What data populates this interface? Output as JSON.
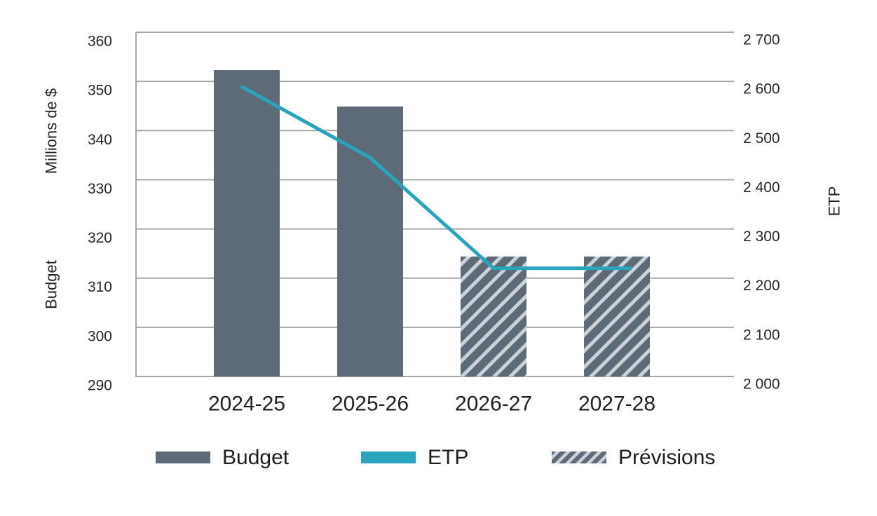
{
  "chart_data": {
    "type": "combo-bar-line",
    "title": "",
    "categories": [
      "2024-25",
      "2025-26",
      "2026-27",
      "2027-28"
    ],
    "series": [
      {
        "name": "Budget",
        "type": "bar",
        "pattern": "solid",
        "axis": "left",
        "values": [
          352.3,
          344.9,
          null,
          null
        ]
      },
      {
        "name": "ETP",
        "type": "line",
        "pattern": "solid",
        "axis": "right",
        "values": [
          2590,
          2445,
          2220,
          2220
        ]
      },
      {
        "name": "Prévisions",
        "type": "bar",
        "pattern": "hatched",
        "axis": "left",
        "values": [
          null,
          null,
          314.4,
          314.4
        ]
      }
    ],
    "left_axis": {
      "title_top": "Millions de $",
      "title_bottom": "Budget",
      "min": 290,
      "max": 360,
      "step": 10,
      "tick_labels": [
        "360",
        "350",
        "340",
        "330",
        "320",
        "310",
        "300",
        "290"
      ]
    },
    "right_axis": {
      "title": "ETP",
      "min": 2000,
      "max": 2700,
      "step": 100,
      "tick_labels": [
        "2 700",
        "2 600",
        "2 500",
        "2 400",
        "2 300",
        "2 200",
        "2 100",
        "2 000"
      ]
    },
    "legend": {
      "position": "bottom",
      "items": [
        {
          "label": "Budget",
          "swatch": "bar-solid"
        },
        {
          "label": "ETP",
          "swatch": "line"
        },
        {
          "label": "Prévisions",
          "swatch": "bar-hatched"
        }
      ]
    },
    "grid": true
  },
  "colors": {
    "bar": "#5d6b79",
    "line": "#29a4bd",
    "hatch_stripe": "#ccd2d8",
    "grid": "#a6a6a6",
    "axis": "#a6a6a6",
    "tick_text": "#262626",
    "label_text": "#1f1f1f",
    "background": "#ffffff"
  }
}
